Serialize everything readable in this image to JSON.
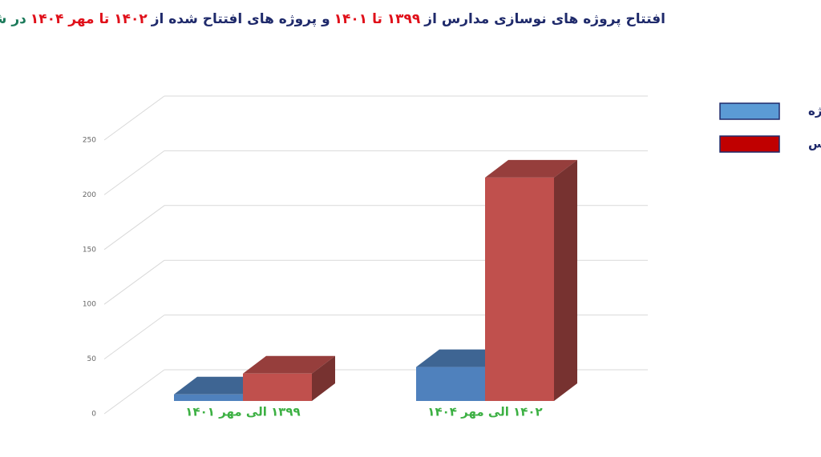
{
  "chart_data": {
    "type": "bar3d",
    "title_parts": [
      {
        "text": "افتتاح پروژه های نوسازی مدارس از",
        "color": "#1f2a6b"
      },
      {
        "text": "۱۳۹۹ تا ۱۴۰۱",
        "color": "#e0101a"
      },
      {
        "text": "و پروژه های افتتاح شده از",
        "color": "#1f2a6b"
      },
      {
        "text": "۱۴۰۲ تا مهر ۱۴۰۴",
        "color": "#e0101a"
      },
      {
        "text": "در شهر بندرعباس",
        "color": "#1b7a5a"
      }
    ],
    "categories": [
      "۱۳۹۹ الی مهر ۱۴۰۱",
      "۱۴۰۲ الی مهر ۱۴۰۴"
    ],
    "series": [
      {
        "name": "پروژه",
        "color": "#4f81bd",
        "legend_color": "#5b9bd5",
        "values": [
          6,
          31
        ]
      },
      {
        "name": "کلاس",
        "color": "#c0504d",
        "legend_color": "#c00000",
        "values": [
          25,
          204
        ]
      }
    ],
    "ylim": [
      0,
      250
    ],
    "yticks": [
      0,
      50,
      100,
      150,
      200,
      250
    ],
    "grid": true,
    "legend": "right",
    "category_label_color": "#3cb043"
  }
}
